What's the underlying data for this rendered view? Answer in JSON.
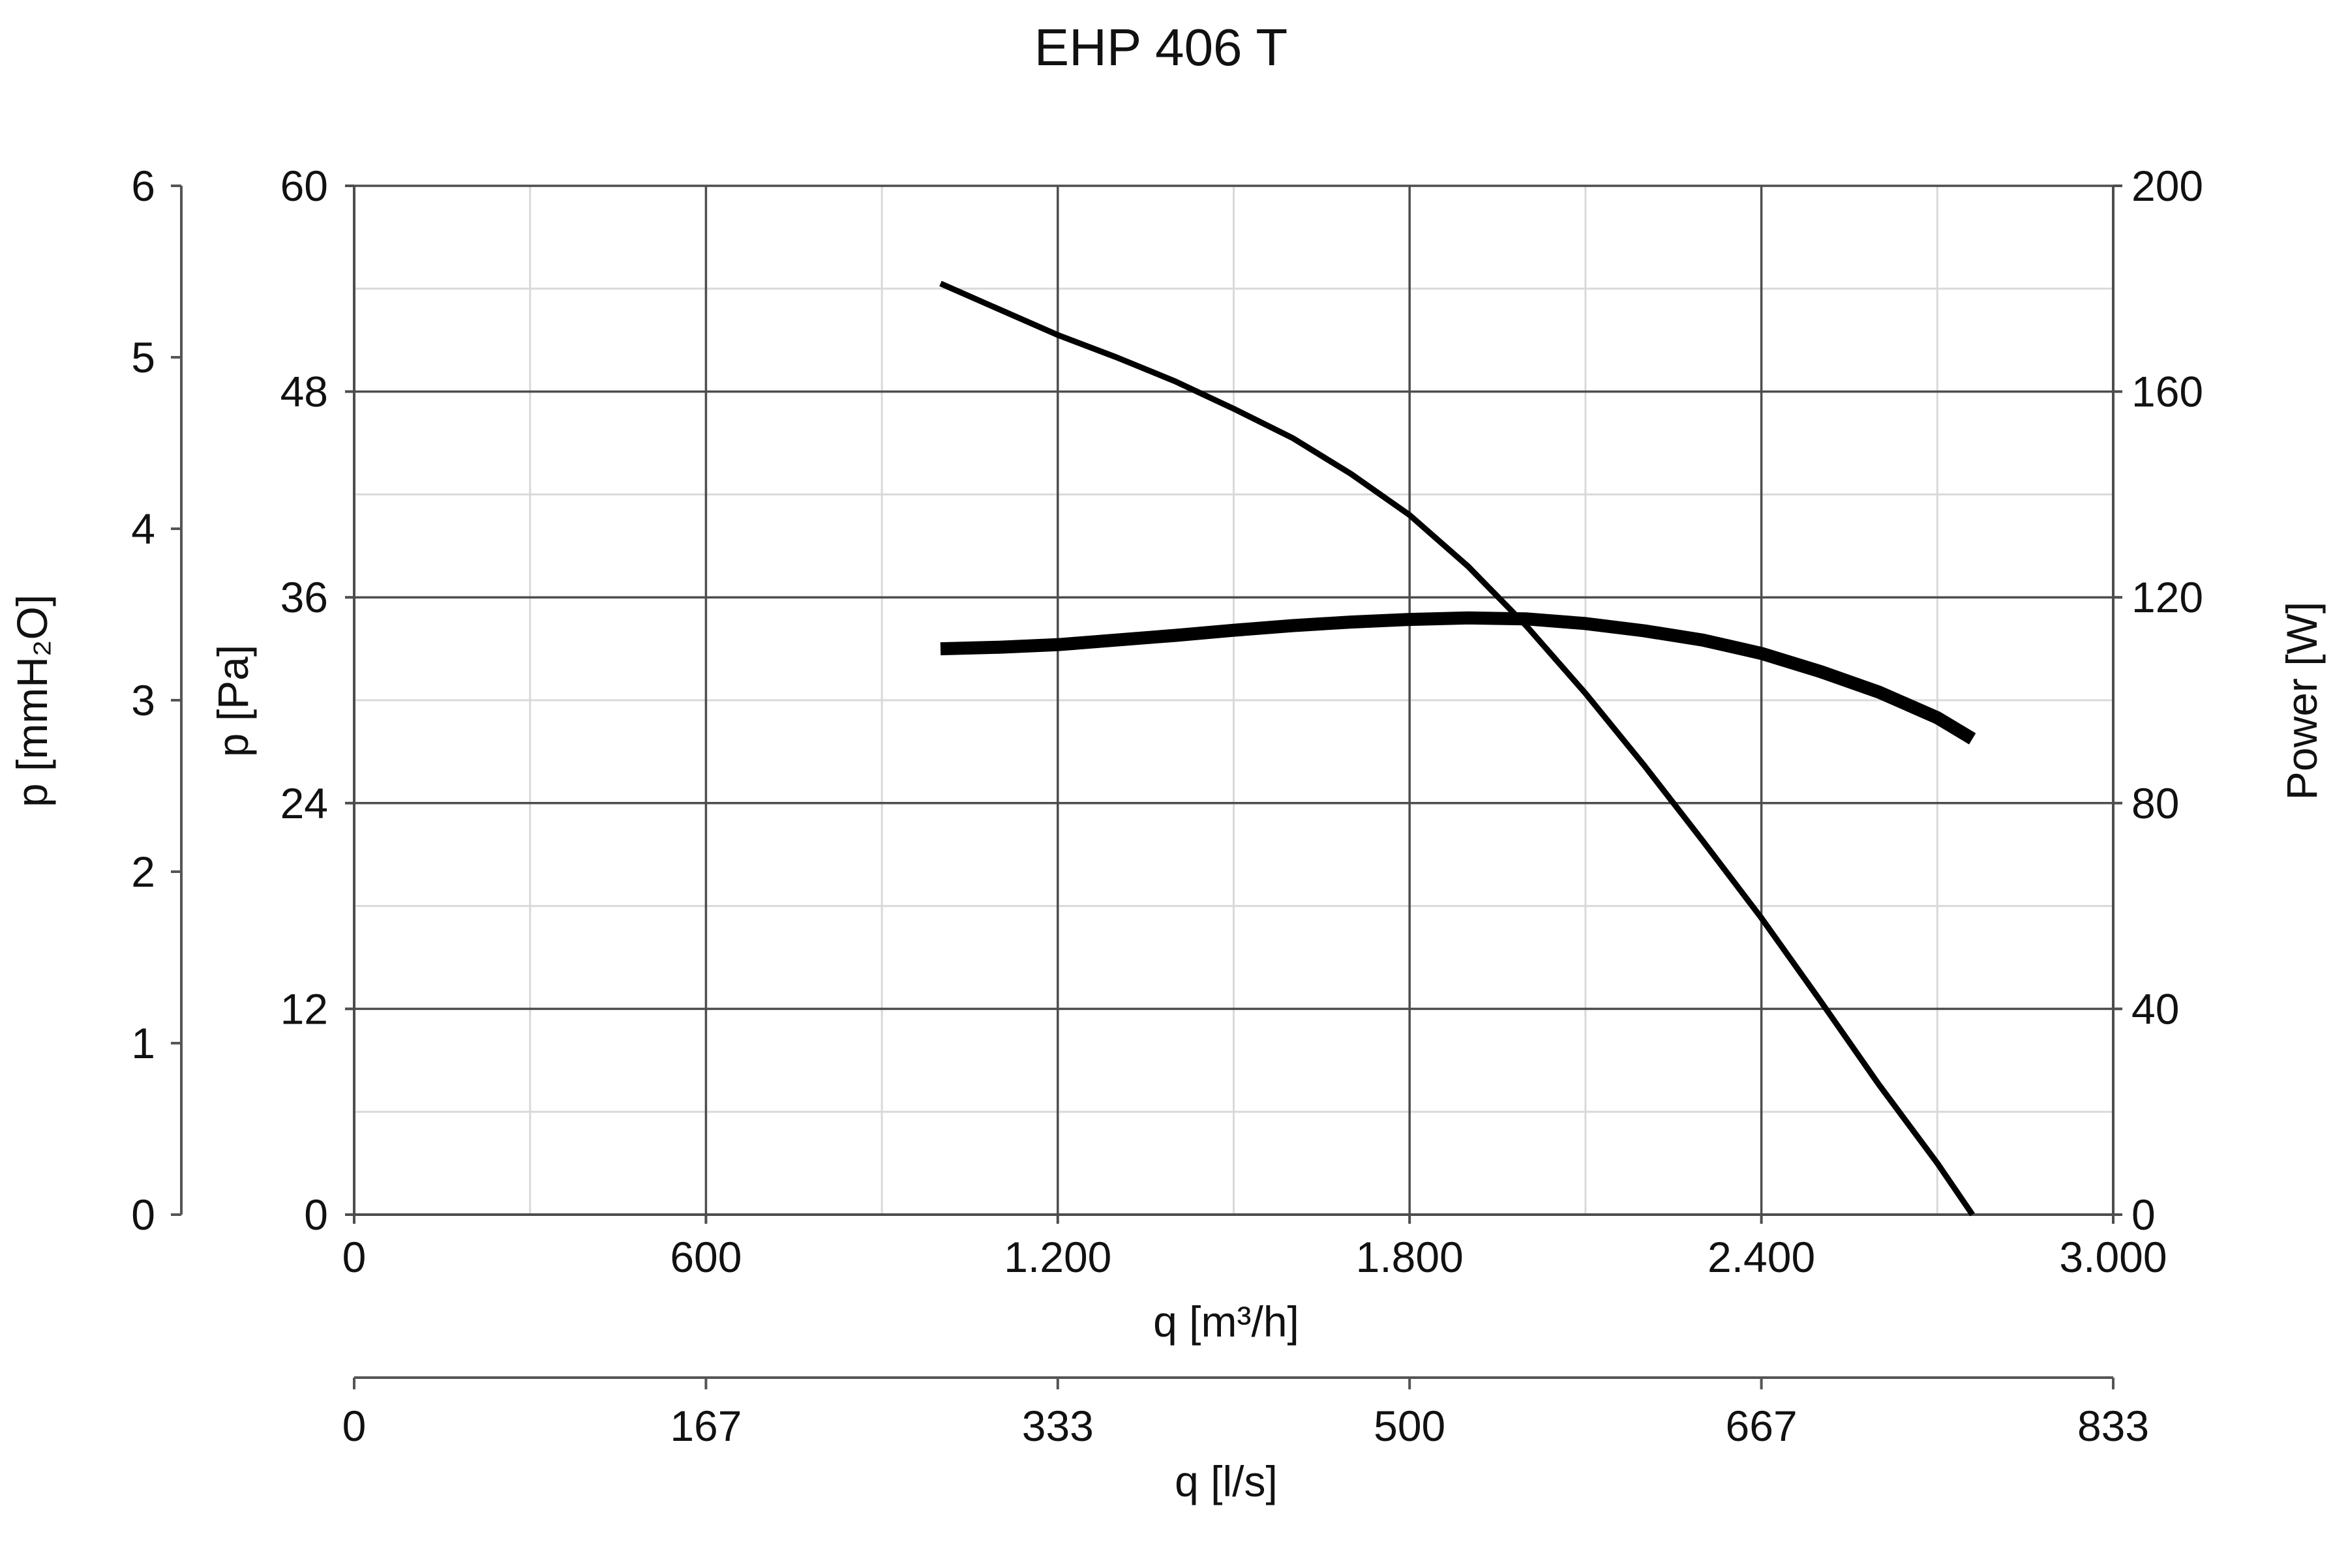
{
  "chart_data": {
    "type": "line",
    "title": "EHP 406 T",
    "x_axis": {
      "label": "q [m³/h]",
      "range": [
        0,
        3000
      ],
      "ticks": [
        0,
        600,
        1200,
        1800,
        2400,
        3000
      ],
      "tick_labels": [
        "0",
        "600",
        "1.200",
        "1.800",
        "2.400",
        "3.000"
      ],
      "minor_gridlines": [
        300,
        900,
        1500,
        2100,
        2700
      ]
    },
    "x2_axis": {
      "label": "q [l/s]",
      "tick_labels": [
        "0",
        "167",
        "333",
        "500",
        "667",
        "833"
      ]
    },
    "y_axis": {
      "label": "p [Pa]",
      "range": [
        0,
        60
      ],
      "ticks": [
        0,
        12,
        24,
        36,
        48,
        60
      ],
      "tick_labels": [
        "0",
        "12",
        "24",
        "36",
        "48",
        "60"
      ],
      "minor_gridlines": [
        6,
        18,
        30,
        42,
        54
      ]
    },
    "y_outer_axis": {
      "label": "p [mmH₂O]",
      "tick_labels": [
        "0",
        "1",
        "2",
        "3",
        "4",
        "5",
        "6"
      ]
    },
    "y2_axis": {
      "label": "Power [W]",
      "range": [
        0,
        200
      ],
      "ticks": [
        0,
        40,
        80,
        120,
        160,
        200
      ],
      "tick_labels": [
        "0",
        "40",
        "80",
        "120",
        "160",
        "200"
      ]
    },
    "grid": true,
    "colors": {
      "line": "#000000",
      "major_grid": "#4d4d4d",
      "minor_grid": "#d9d9d9",
      "background": "#ffffff"
    },
    "series": [
      {
        "axis": "left",
        "x": [
          1000,
          1100,
          1200,
          1300,
          1400,
          1500,
          1600,
          1700,
          1800,
          1900,
          2000,
          2100,
          2200,
          2300,
          2400,
          2500,
          2600,
          2700,
          2760
        ],
        "values": [
          54.3,
          52.8,
          51.3,
          50.0,
          48.6,
          47.0,
          45.3,
          43.2,
          40.8,
          37.8,
          34.3,
          30.4,
          26.2,
          21.8,
          17.3,
          12.5,
          7.6,
          3.0,
          0
        ]
      },
      {
        "axis": "right",
        "x": [
          1000,
          1100,
          1200,
          1300,
          1400,
          1500,
          1600,
          1700,
          1800,
          1900,
          2000,
          2100,
          2200,
          2300,
          2400,
          2500,
          2600,
          2700,
          2760
        ],
        "values": [
          110,
          110.3,
          110.8,
          111.7,
          112.6,
          113.6,
          114.5,
          115.2,
          115.7,
          116.0,
          115.8,
          114.9,
          113.5,
          111.7,
          109.1,
          105.6,
          101.6,
          96.6,
          92.5
        ]
      }
    ]
  }
}
